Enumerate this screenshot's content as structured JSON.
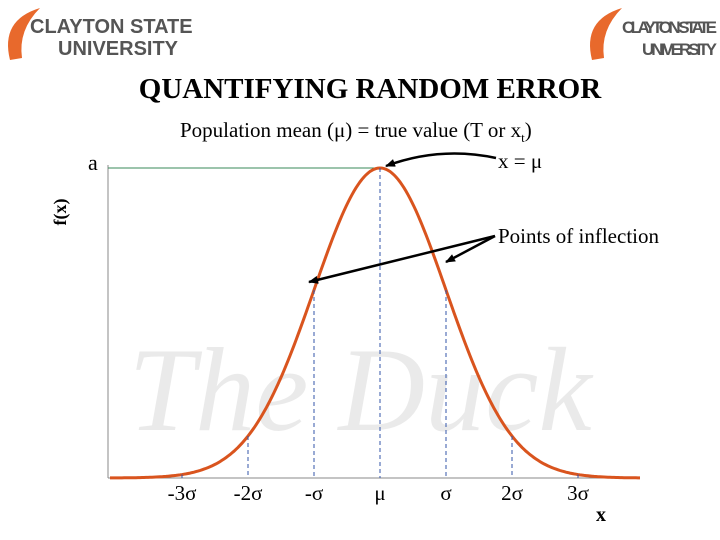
{
  "logos": [
    {
      "line1": "CLAYTON STATE",
      "line2": "UNIVERSITY"
    },
    {
      "line1": "CLAYTON STATE",
      "line2": "UNIVERSITY"
    }
  ],
  "watermark": "The Duck",
  "title": "QUANTIFYING RANDOM ERROR",
  "subtitle": {
    "main": "Population mean (μ) = true value (T or x",
    "subscript": "t",
    "close": ")"
  },
  "diagram": {
    "y_label": "f(x)",
    "peak_label": "a",
    "peak_annotation": "x = μ",
    "inflection_annotation": "Points of inflection",
    "x_label": "x",
    "x_ticks": [
      "-3σ",
      "-2σ",
      "-σ",
      "μ",
      "σ",
      "2σ",
      "3σ"
    ]
  }
}
